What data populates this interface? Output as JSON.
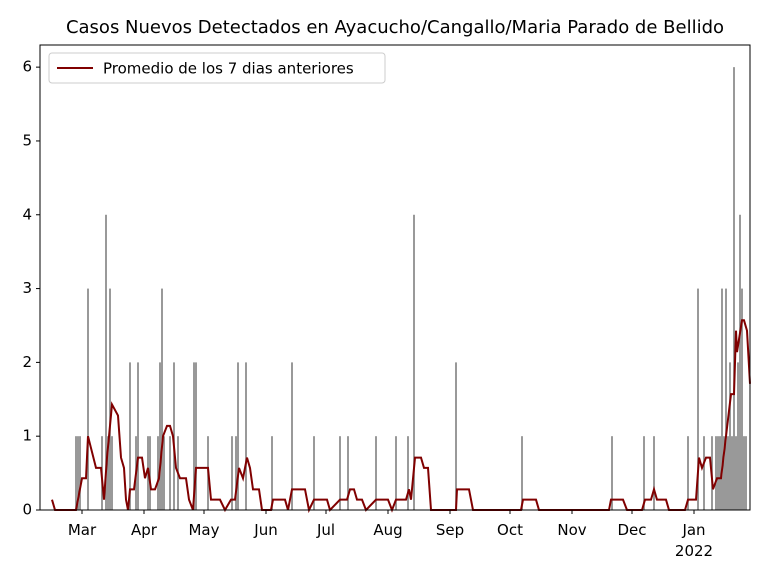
{
  "chart_data": {
    "type": "bar",
    "title": "Casos Nuevos Detectados en Ayacucho/Cangallo/Maria Parado de Bellido",
    "xlim": [
      39,
      394
    ],
    "ylim": [
      0,
      6.3
    ],
    "xticks": [
      {
        "value": 60,
        "label": "Mar"
      },
      {
        "value": 91,
        "label": "Apr"
      },
      {
        "value": 121,
        "label": "May"
      },
      {
        "value": 152,
        "label": "Jun"
      },
      {
        "value": 182,
        "label": "Jul"
      },
      {
        "value": 213,
        "label": "Aug"
      },
      {
        "value": 244,
        "label": "Sep"
      },
      {
        "value": 274,
        "label": "Oct"
      },
      {
        "value": 305,
        "label": "Nov"
      },
      {
        "value": 335,
        "label": "Dec"
      },
      {
        "value": 366,
        "label": "Jan\n2022"
      }
    ],
    "yticks": [
      0,
      1,
      2,
      3,
      4,
      5,
      6
    ],
    "bars": {
      "color": "#808080",
      "x": [
        57,
        58,
        59,
        63,
        70,
        72,
        73,
        74,
        75,
        84,
        87,
        88,
        93,
        94,
        98,
        99,
        100,
        101,
        104,
        106,
        108,
        116,
        117,
        123,
        135,
        137,
        138,
        142,
        155,
        165,
        176,
        189,
        193,
        207,
        217,
        223,
        226,
        247,
        280,
        325,
        341,
        346,
        363,
        368,
        371,
        375,
        377,
        378,
        379,
        380,
        381,
        382,
        383,
        384,
        385,
        386,
        387,
        388,
        389,
        390,
        391,
        392
      ],
      "values": [
        1,
        1,
        1,
        3,
        1,
        4,
        1,
        3,
        1,
        2,
        1,
        2,
        1,
        1,
        1,
        2,
        3,
        1,
        1,
        2,
        1,
        2,
        2,
        1,
        1,
        1,
        2,
        2,
        1,
        2,
        1,
        1,
        1,
        1,
        1,
        1,
        4,
        2,
        1,
        1,
        1,
        1,
        1,
        3,
        1,
        1,
        1,
        1,
        1,
        3,
        1,
        3,
        1,
        2,
        1,
        6,
        1,
        2,
        4,
        3,
        1,
        1
      ]
    },
    "series": [
      {
        "name": "Promedio de los 7 dias anteriores",
        "color": "#800000",
        "x": [
          45,
          46.5,
          57,
          60,
          62,
          63,
          67,
          69.5,
          71,
          72.5,
          75,
          78,
          79.5,
          81,
          82,
          83,
          84,
          86,
          88,
          90,
          91.5,
          93,
          94.5,
          96.5,
          98.5,
          100.5,
          102.5,
          104,
          105.5,
          107,
          109,
          112,
          113.5,
          115.5,
          117,
          123,
          124.5,
          129,
          131.5,
          134.5,
          136.5,
          138.5,
          140.5,
          142.5,
          144,
          145.5,
          148.5,
          150,
          154.5,
          155.5,
          161.5,
          163,
          165,
          171.5,
          173.5,
          176,
          182.5,
          184,
          189,
          192.5,
          194,
          196,
          197.5,
          200,
          202,
          207,
          213,
          215,
          217,
          222,
          223.5,
          224.5,
          226.5,
          229.5,
          231,
          233,
          234.5,
          247,
          247.5,
          253.5,
          255.5,
          279.5,
          280.5,
          287,
          288.5,
          323.5,
          324.5,
          330.5,
          332.5,
          340,
          341.5,
          344.5,
          346,
          347.5,
          352,
          353.5,
          361.5,
          363,
          367,
          368.5,
          370,
          372,
          374,
          375.5,
          377.5,
          379.5,
          382,
          384.5,
          386,
          387,
          387.5,
          390,
          391,
          392.5,
          394
        ],
        "values": [
          0.14,
          0,
          0,
          0.43,
          0.43,
          1.0,
          0.57,
          0.57,
          0.14,
          0.71,
          1.43,
          1.28,
          0.71,
          0.57,
          0.14,
          0,
          0.28,
          0.28,
          0.71,
          0.71,
          0.43,
          0.57,
          0.28,
          0.28,
          0.43,
          1.0,
          1.14,
          1.14,
          1.0,
          0.57,
          0.43,
          0.43,
          0.14,
          0,
          0.57,
          0.57,
          0.14,
          0.14,
          0,
          0.14,
          0.14,
          0.57,
          0.43,
          0.71,
          0.57,
          0.28,
          0.28,
          0,
          0,
          0.14,
          0.14,
          0,
          0.28,
          0.28,
          0,
          0.14,
          0.14,
          0,
          0.14,
          0.14,
          0.28,
          0.28,
          0.14,
          0.14,
          0,
          0.14,
          0.14,
          0,
          0.14,
          0.14,
          0.28,
          0.14,
          0.71,
          0.71,
          0.57,
          0.57,
          0,
          0,
          0.28,
          0.28,
          0,
          0,
          0.14,
          0.14,
          0,
          0,
          0.14,
          0.14,
          0,
          0,
          0.14,
          0.14,
          0.28,
          0.14,
          0.14,
          0,
          0,
          0.14,
          0.14,
          0.71,
          0.57,
          0.71,
          0.71,
          0.28,
          0.43,
          0.43,
          1.0,
          1.57,
          1.57,
          2.43,
          2.14,
          2.57,
          2.57,
          2.43,
          1.71
        ]
      }
    ],
    "legend": "upper left"
  }
}
